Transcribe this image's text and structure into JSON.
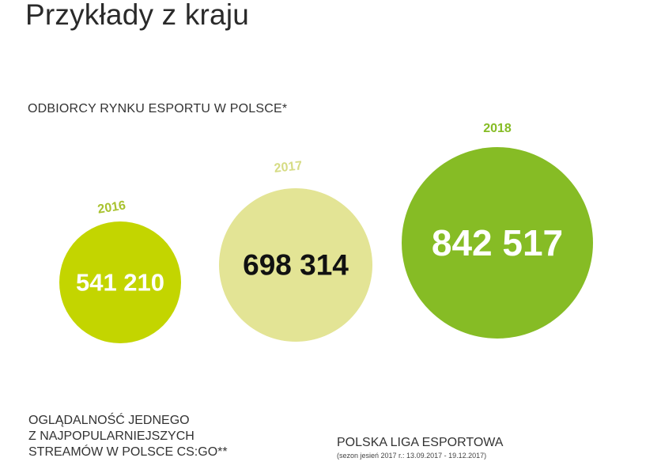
{
  "header": {
    "title": "Przykłady z kraju"
  },
  "section": {
    "title": "ODBIORCY RYNKU ESPORTU W POLSCE*"
  },
  "chart_data": {
    "type": "bubble",
    "categories": [
      "2016",
      "2017",
      "2018"
    ],
    "values": [
      541210,
      698314,
      842517
    ],
    "value_labels": [
      "541 210",
      "698 314",
      "842 517"
    ],
    "colors": [
      "#c3d500",
      "#e3e495",
      "#86bc25"
    ],
    "label_colors": [
      "#ffffff",
      "#111111",
      "#ffffff"
    ],
    "year_label_colors": [
      "#a8c22e",
      "#d6dc84",
      "#86bc25"
    ]
  },
  "notes": {
    "left_lines": [
      "OGLĄDALNOŚĆ JEDNEGO",
      "Z NAJPOPULARNIEJSZYCH",
      "STREAMÓW W POLSCE CS:GO**"
    ],
    "right_title": "POLSKA LIGA ESPORTOWA",
    "right_sub": "(sezon jesień 2017 r.: 13.09.2017 - 19.12.2017)"
  }
}
